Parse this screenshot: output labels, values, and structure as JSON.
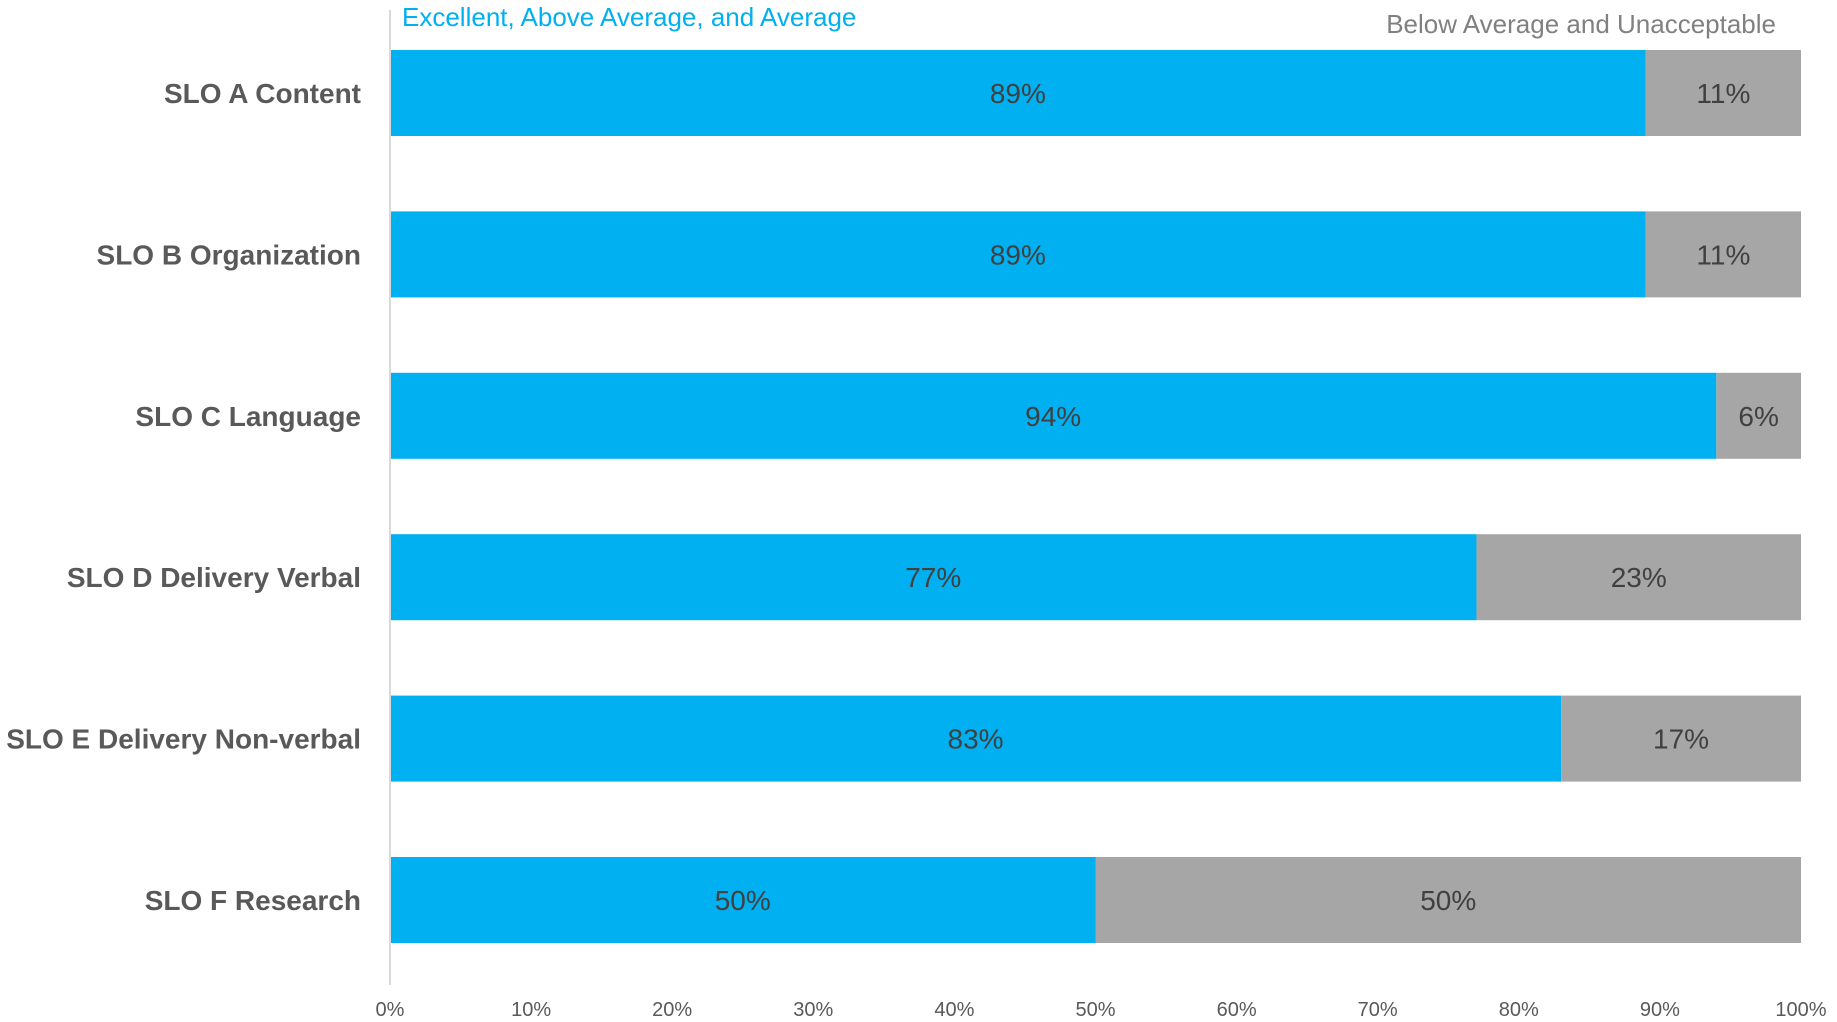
{
  "legend": {
    "series_1": "Excellent, Above Average, and Average",
    "series_2": "Below Average and Unacceptable"
  },
  "colors": {
    "series_1": "#00b0f0",
    "series_2": "#a6a6a6",
    "axis": "#d9d9d9",
    "text": "#595959"
  },
  "chart_data": {
    "type": "bar",
    "orientation": "horizontal",
    "stacked": "100%",
    "title": "",
    "xlabel": "",
    "ylabel": "",
    "xlim": [
      0,
      100
    ],
    "x_ticks": [
      "0%",
      "10%",
      "20%",
      "30%",
      "40%",
      "50%",
      "60%",
      "70%",
      "80%",
      "90%",
      "100%"
    ],
    "grid": false,
    "legend_position": "top",
    "categories": [
      "SLO A Content",
      "SLO B Organization",
      "SLO C Language",
      "SLO D Delivery Verbal",
      "SLO E Delivery Non-verbal",
      "SLO F Research"
    ],
    "series": [
      {
        "name": "Excellent, Above Average, and Average",
        "values": [
          89,
          89,
          94,
          77,
          83,
          50
        ],
        "labels": [
          "89%",
          "89%",
          "94%",
          "77%",
          "83%",
          "50%"
        ]
      },
      {
        "name": "Below Average and Unacceptable",
        "values": [
          11,
          11,
          6,
          23,
          17,
          50
        ],
        "labels": [
          "11%",
          "11%",
          "6%",
          "23%",
          "17%",
          "50%"
        ]
      }
    ]
  }
}
